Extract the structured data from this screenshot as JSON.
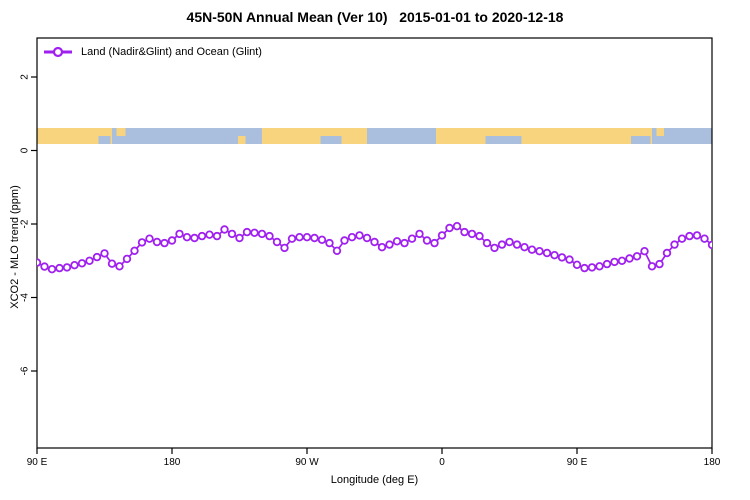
{
  "title": "45N-50N Annual Mean (Ver 10)   2015-01-01 to 2020-12-18",
  "legend": {
    "label": "Land (Nadir&Glint) and Ocean (Glint)",
    "marker": "open-circle-on-line",
    "color": "#A020F0"
  },
  "chart_data": {
    "type": "line",
    "title": "45N-50N Annual Mean (Ver 10)   2015-01-01 to 2020-12-18",
    "xlabel": "Longitude (deg E)",
    "ylabel": "XCO2 - MLO trend (ppm)",
    "xlim": [
      90,
      540
    ],
    "ylim": [
      -8.1,
      3.1
    ],
    "grid": false,
    "legend_position": "top-left-inside",
    "x_ticks": [
      {
        "value": 90,
        "label": "90 E"
      },
      {
        "value": 180,
        "label": "180"
      },
      {
        "value": 270,
        "label": "90 W"
      },
      {
        "value": 360,
        "label": "0"
      },
      {
        "value": 450,
        "label": "90 E"
      },
      {
        "value": 540,
        "label": "180"
      }
    ],
    "y_ticks": [
      {
        "value": 2,
        "label": "2"
      },
      {
        "value": 0,
        "label": "0"
      },
      {
        "value": -2,
        "label": "-2"
      },
      {
        "value": -4,
        "label": "-4"
      },
      {
        "value": -6,
        "label": "-6"
      }
    ],
    "map_band": {
      "comment": "land/ocean strip drawn across plot near y=0.4",
      "y_top_value": 0.612,
      "y_bottom_value": 0.177,
      "land_color": "#F9D47F",
      "ocean_color": "#A9BFDD",
      "segments": [
        {
          "type": "land",
          "from": 90,
          "to": 140
        },
        {
          "type": "ocean",
          "from": 140,
          "to": 240
        },
        {
          "type": "land",
          "from": 240,
          "to": 310
        },
        {
          "type": "ocean",
          "from": 310,
          "to": 356
        },
        {
          "type": "land",
          "from": 356,
          "to": 500
        },
        {
          "type": "ocean",
          "from": 500,
          "to": 540
        }
      ],
      "patches": [
        {
          "type": "land",
          "from": 143,
          "to": 149,
          "pos": "top"
        },
        {
          "type": "ocean",
          "from": 131,
          "to": 139,
          "pos": "bottom"
        },
        {
          "type": "land",
          "from": 224,
          "to": 229,
          "pos": "bottom"
        },
        {
          "type": "ocean",
          "from": 279,
          "to": 293,
          "pos": "bottom"
        },
        {
          "type": "ocean",
          "from": 389,
          "to": 413,
          "pos": "bottom"
        },
        {
          "type": "ocean",
          "from": 486,
          "to": 499,
          "pos": "bottom"
        },
        {
          "type": "land",
          "from": 503,
          "to": 508,
          "pos": "top"
        }
      ]
    },
    "series": [
      {
        "name": "Land (Nadir&Glint) and Ocean (Glint)",
        "color": "#A020F0",
        "marker": "open-circle",
        "x": [
          90,
          95,
          100,
          105,
          110,
          115,
          120,
          125,
          130,
          135,
          140,
          145,
          150,
          155,
          160,
          165,
          170,
          175,
          180,
          185,
          190,
          195,
          200,
          205,
          210,
          215,
          220,
          225,
          230,
          235,
          240,
          245,
          250,
          255,
          260,
          265,
          270,
          275,
          280,
          285,
          290,
          295,
          300,
          305,
          310,
          315,
          320,
          325,
          330,
          335,
          340,
          345,
          350,
          355,
          360,
          365,
          370,
          375,
          380,
          385,
          390,
          395,
          400,
          405,
          410,
          415,
          420,
          425,
          430,
          435,
          440,
          445,
          450,
          455,
          460,
          465,
          470,
          475,
          480,
          485,
          490,
          495,
          500,
          505,
          510,
          515,
          520,
          525,
          530,
          535,
          540
        ],
        "y": [
          -3.05,
          -3.16,
          -3.23,
          -3.2,
          -3.18,
          -3.12,
          -3.07,
          -3.0,
          -2.9,
          -2.8,
          -3.08,
          -3.15,
          -2.95,
          -2.73,
          -2.5,
          -2.4,
          -2.49,
          -2.52,
          -2.45,
          -2.27,
          -2.36,
          -2.38,
          -2.33,
          -2.29,
          -2.33,
          -2.15,
          -2.27,
          -2.38,
          -2.22,
          -2.24,
          -2.27,
          -2.33,
          -2.49,
          -2.65,
          -2.4,
          -2.36,
          -2.36,
          -2.38,
          -2.43,
          -2.52,
          -2.73,
          -2.45,
          -2.36,
          -2.31,
          -2.38,
          -2.49,
          -2.63,
          -2.56,
          -2.47,
          -2.52,
          -2.4,
          -2.27,
          -2.45,
          -2.52,
          -2.31,
          -2.11,
          -2.06,
          -2.22,
          -2.27,
          -2.33,
          -2.52,
          -2.65,
          -2.56,
          -2.49,
          -2.56,
          -2.63,
          -2.7,
          -2.74,
          -2.79,
          -2.85,
          -2.91,
          -2.97,
          -3.11,
          -3.2,
          -3.18,
          -3.15,
          -3.09,
          -3.03,
          -3.0,
          -2.94,
          -2.88,
          -2.74,
          -3.15,
          -3.09,
          -2.79,
          -2.56,
          -2.4,
          -2.33,
          -2.31,
          -2.4,
          -2.57
        ]
      }
    ]
  }
}
